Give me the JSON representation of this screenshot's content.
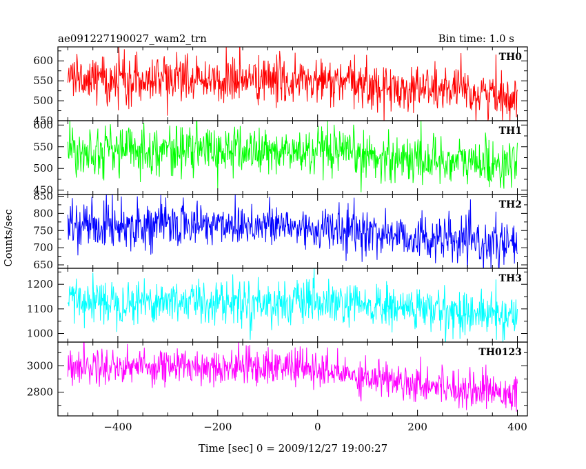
{
  "chart_data": {
    "type": "line",
    "title": "ae091227190027_wam2_trn",
    "bin_time_label": "Bin time: 1.0 s",
    "xlabel": "Time [sec] 0 = 2009/12/27 19:00:27",
    "ylabel": "Counts/sec",
    "xlim": [
      -520,
      420
    ],
    "x_ticks": [
      -400,
      -200,
      0,
      200,
      400
    ],
    "x_tick_labels": [
      "−400",
      "−200",
      "0",
      "200",
      "400"
    ],
    "x_range": [
      -500,
      400
    ],
    "bin_time": 1.0,
    "grid": false,
    "panels": [
      {
        "name": "TH0",
        "color": "#ff0000",
        "ylim": [
          450,
          635
        ],
        "y_ticks": [
          450,
          500,
          550,
          600
        ],
        "y_tick_labels": [
          "450",
          "500",
          "550",
          "600"
        ],
        "trend": [
          [
            -500,
            555
          ],
          [
            -300,
            555
          ],
          [
            -100,
            552
          ],
          [
            100,
            540
          ],
          [
            150,
            528
          ],
          [
            200,
            535
          ],
          [
            300,
            520
          ],
          [
            400,
            512
          ]
        ],
        "noise_sd": 30
      },
      {
        "name": "TH1",
        "color": "#00ff00",
        "ylim": [
          440,
          610
        ],
        "y_ticks": [
          450,
          500,
          550,
          600
        ],
        "y_tick_labels": [
          "450",
          "500",
          "550",
          "600"
        ],
        "trend": [
          [
            -500,
            545
          ],
          [
            -200,
            542
          ],
          [
            0,
            535
          ],
          [
            200,
            522
          ],
          [
            400,
            508
          ]
        ],
        "noise_sd": 28
      },
      {
        "name": "TH2",
        "color": "#0000ff",
        "ylim": [
          640,
          855
        ],
        "y_ticks": [
          650,
          700,
          750,
          800,
          850
        ],
        "y_tick_labels": [
          "650",
          "700",
          "750",
          "800",
          "850"
        ],
        "trend": [
          [
            -500,
            765
          ],
          [
            -250,
            768
          ],
          [
            -150,
            770
          ],
          [
            0,
            755
          ],
          [
            100,
            745
          ],
          [
            200,
            730
          ],
          [
            300,
            715
          ],
          [
            400,
            705
          ]
        ],
        "noise_sd": 33
      },
      {
        "name": "TH3",
        "color": "#00ffff",
        "ylim": [
          965,
          1265
        ],
        "y_ticks": [
          1000,
          1100,
          1200
        ],
        "y_tick_labels": [
          "1000",
          "1100",
          "1200"
        ],
        "trend": [
          [
            -500,
            1135
          ],
          [
            -200,
            1130
          ],
          [
            0,
            1120
          ],
          [
            200,
            1100
          ],
          [
            400,
            1070
          ]
        ],
        "noise_sd": 45
      },
      {
        "name": "TH0123",
        "color": "#ff00ff",
        "ylim": [
          2620,
          3180
        ],
        "y_ticks": [
          2800,
          3000
        ],
        "y_tick_labels": [
          "2800",
          "3000"
        ],
        "trend": [
          [
            -500,
            3000
          ],
          [
            -100,
            2995
          ],
          [
            -50,
            3000
          ],
          [
            0,
            2960
          ],
          [
            100,
            2920
          ],
          [
            200,
            2870
          ],
          [
            300,
            2830
          ],
          [
            400,
            2800
          ]
        ],
        "noise_sd": 70
      }
    ]
  }
}
